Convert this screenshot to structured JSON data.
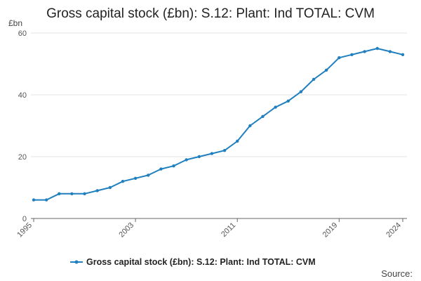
{
  "chart_data": {
    "type": "line",
    "title": "Gross capital stock (£bn): S.12: Plant: Ind TOTAL: CVM",
    "ylabel": "£bn",
    "xlabel": "",
    "x": [
      1995,
      1996,
      1997,
      1998,
      1999,
      2000,
      2001,
      2002,
      2003,
      2004,
      2005,
      2006,
      2007,
      2008,
      2009,
      2010,
      2011,
      2012,
      2013,
      2014,
      2015,
      2016,
      2017,
      2018,
      2019,
      2020,
      2021,
      2022,
      2023,
      2024
    ],
    "series": [
      {
        "name": "Gross capital stock (£bn): S.12: Plant: Ind TOTAL: CVM",
        "color": "#1f7fbf",
        "values": [
          6,
          6,
          8,
          8,
          8,
          9,
          10,
          12,
          13,
          14,
          16,
          17,
          19,
          20,
          21,
          22,
          25,
          30,
          33,
          36,
          38,
          41,
          45,
          48,
          52,
          53,
          54,
          55,
          54,
          53
        ]
      }
    ],
    "xlim": [
      1995,
      2024
    ],
    "ylim": [
      0,
      60
    ],
    "y_ticks": [
      "0",
      "20",
      "40",
      "60"
    ],
    "x_ticks": [
      "1995",
      "2003",
      "2011",
      "2019",
      "2024"
    ],
    "grid": "horizontal",
    "legend_placement": "bottom-center"
  },
  "source_label": "Source:"
}
